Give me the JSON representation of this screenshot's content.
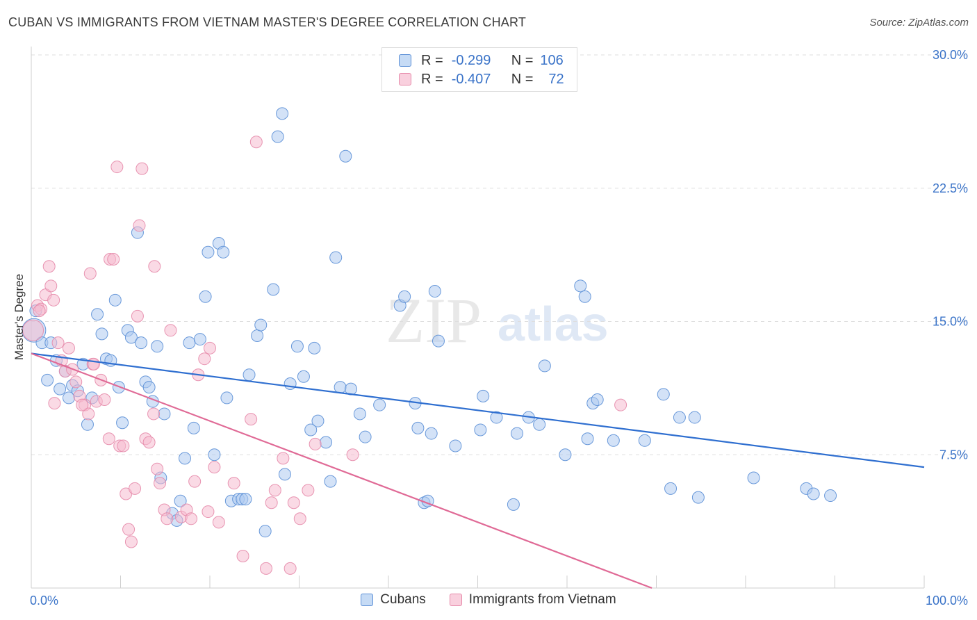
{
  "title": "CUBAN VS IMMIGRANTS FROM VIETNAM MASTER'S DEGREE CORRELATION CHART",
  "source": "Source: ZipAtlas.com",
  "watermark": {
    "zip": "ZIP",
    "atlas": "atlas"
  },
  "legend_top": {
    "rows": [
      {
        "r_label": "R =",
        "r_value": "-0.299",
        "n_label": "N =",
        "n_value": "106"
      },
      {
        "r_label": "R =",
        "r_value": "-0.407",
        "n_label": "N =",
        "n_value": "72"
      }
    ]
  },
  "legend_bottom": [
    "Cubans",
    "Immigrants from Vietnam"
  ],
  "colors": {
    "blue_fill": "#aecbf0",
    "blue_stroke": "#5b8fd6",
    "blue_line": "#2f6fd0",
    "pink_fill": "#f6bcd0",
    "pink_stroke": "#e68aaa",
    "pink_line": "#e06a96",
    "tick_label": "#3a73c8",
    "grid": "#dedede"
  },
  "chart_data": {
    "type": "scatter",
    "title": "CUBAN VS IMMIGRANTS FROM VIETNAM MASTER'S DEGREE CORRELATION CHART",
    "xlabel": "",
    "ylabel": "Master's Degree",
    "xlim": [
      0,
      100
    ],
    "ylim": [
      0,
      30
    ],
    "x_tick_labels": [
      "0.0%",
      "100.0%"
    ],
    "y_ticks": [
      7.5,
      15.0,
      22.5,
      30.0
    ],
    "y_tick_labels": [
      "7.5%",
      "15.0%",
      "22.5%",
      "30.0%"
    ],
    "grid": true,
    "legend_position": "top-center",
    "series": [
      {
        "name": "Cubans",
        "r": -0.299,
        "n": 106,
        "trend": {
          "x": [
            0,
            100
          ],
          "y": [
            13.2,
            6.8
          ]
        },
        "points": [
          [
            0.3,
            14.5
          ],
          [
            0.5,
            15.6
          ],
          [
            1.2,
            13.8
          ],
          [
            1.8,
            11.7
          ],
          [
            2.2,
            13.8
          ],
          [
            2.8,
            12.8
          ],
          [
            3.2,
            11.2
          ],
          [
            3.8,
            12.2
          ],
          [
            4.2,
            10.7
          ],
          [
            4.6,
            11.4
          ],
          [
            5.2,
            11.1
          ],
          [
            5.8,
            12.6
          ],
          [
            6.3,
            9.2
          ],
          [
            6.8,
            10.7
          ],
          [
            7.4,
            15.4
          ],
          [
            7.9,
            14.3
          ],
          [
            8.4,
            12.9
          ],
          [
            8.9,
            12.8
          ],
          [
            9.4,
            16.2
          ],
          [
            9.8,
            11.3
          ],
          [
            10.2,
            9.3
          ],
          [
            10.8,
            14.5
          ],
          [
            11.2,
            14.1
          ],
          [
            11.9,
            20.0
          ],
          [
            12.3,
            13.8
          ],
          [
            12.8,
            11.6
          ],
          [
            13.2,
            11.3
          ],
          [
            13.6,
            10.5
          ],
          [
            14.1,
            13.6
          ],
          [
            14.5,
            6.2
          ],
          [
            14.9,
            9.8
          ],
          [
            15.8,
            4.2
          ],
          [
            16.3,
            3.8
          ],
          [
            16.7,
            4.9
          ],
          [
            17.2,
            7.3
          ],
          [
            17.7,
            13.8
          ],
          [
            18.2,
            9.0
          ],
          [
            18.9,
            14.0
          ],
          [
            19.5,
            16.4
          ],
          [
            19.8,
            18.9
          ],
          [
            20.5,
            7.5
          ],
          [
            21.0,
            19.4
          ],
          [
            21.5,
            18.9
          ],
          [
            21.9,
            10.7
          ],
          [
            22.4,
            4.9
          ],
          [
            23.2,
            5.0
          ],
          [
            23.6,
            5.0
          ],
          [
            24.0,
            5.0
          ],
          [
            24.4,
            12.0
          ],
          [
            25.3,
            14.2
          ],
          [
            25.7,
            14.8
          ],
          [
            26.2,
            3.2
          ],
          [
            27.1,
            16.8
          ],
          [
            27.6,
            25.4
          ],
          [
            28.1,
            26.7
          ],
          [
            28.4,
            6.4
          ],
          [
            29.0,
            11.5
          ],
          [
            29.8,
            13.6
          ],
          [
            30.5,
            11.9
          ],
          [
            31.3,
            8.9
          ],
          [
            31.7,
            13.5
          ],
          [
            32.1,
            9.4
          ],
          [
            33.0,
            8.2
          ],
          [
            33.5,
            6.0
          ],
          [
            34.1,
            18.6
          ],
          [
            34.6,
            11.3
          ],
          [
            35.2,
            24.3
          ],
          [
            35.8,
            11.2
          ],
          [
            36.8,
            9.8
          ],
          [
            37.4,
            8.5
          ],
          [
            39.0,
            10.3
          ],
          [
            41.3,
            15.9
          ],
          [
            41.8,
            16.4
          ],
          [
            43.0,
            10.4
          ],
          [
            43.3,
            9.0
          ],
          [
            44.0,
            4.8
          ],
          [
            44.4,
            4.9
          ],
          [
            44.8,
            8.7
          ],
          [
            45.2,
            16.7
          ],
          [
            45.6,
            13.9
          ],
          [
            47.5,
            8.0
          ],
          [
            50.3,
            8.9
          ],
          [
            50.6,
            10.8
          ],
          [
            52.1,
            9.6
          ],
          [
            54.0,
            4.7
          ],
          [
            54.4,
            8.7
          ],
          [
            55.7,
            9.6
          ],
          [
            56.9,
            9.2
          ],
          [
            57.5,
            12.5
          ],
          [
            59.8,
            7.5
          ],
          [
            61.5,
            17.0
          ],
          [
            62.0,
            16.4
          ],
          [
            62.3,
            8.4
          ],
          [
            62.9,
            10.4
          ],
          [
            63.4,
            10.6
          ],
          [
            65.2,
            8.3
          ],
          [
            68.7,
            8.3
          ],
          [
            70.8,
            10.9
          ],
          [
            71.6,
            5.6
          ],
          [
            72.6,
            9.6
          ],
          [
            74.3,
            9.6
          ],
          [
            74.7,
            5.1
          ],
          [
            80.9,
            6.2
          ],
          [
            86.8,
            5.6
          ],
          [
            87.6,
            5.3
          ],
          [
            89.5,
            5.2
          ]
        ]
      },
      {
        "name": "Immigrants from Vietnam",
        "r": -0.407,
        "n": 72,
        "trend": {
          "x": [
            0,
            69.5
          ],
          "y": [
            13.2,
            0.0
          ]
        },
        "points": [
          [
            0.2,
            14.5
          ],
          [
            0.7,
            15.9
          ],
          [
            1.1,
            15.7
          ],
          [
            1.6,
            16.5
          ],
          [
            2.0,
            18.1
          ],
          [
            2.2,
            17.0
          ],
          [
            2.5,
            16.2
          ],
          [
            3.0,
            13.8
          ],
          [
            3.4,
            12.8
          ],
          [
            3.8,
            12.2
          ],
          [
            4.2,
            13.5
          ],
          [
            4.6,
            12.3
          ],
          [
            5.0,
            11.6
          ],
          [
            5.4,
            10.8
          ],
          [
            6.0,
            10.3
          ],
          [
            6.4,
            9.8
          ],
          [
            6.9,
            12.6
          ],
          [
            7.3,
            10.5
          ],
          [
            7.8,
            11.7
          ],
          [
            8.2,
            10.6
          ],
          [
            8.7,
            8.4
          ],
          [
            8.8,
            18.5
          ],
          [
            9.2,
            18.5
          ],
          [
            9.6,
            23.7
          ],
          [
            9.9,
            8.0
          ],
          [
            10.3,
            8.0
          ],
          [
            10.6,
            5.3
          ],
          [
            10.9,
            3.3
          ],
          [
            11.2,
            2.6
          ],
          [
            11.6,
            5.6
          ],
          [
            12.1,
            20.4
          ],
          [
            12.4,
            23.6
          ],
          [
            12.8,
            8.4
          ],
          [
            13.2,
            8.2
          ],
          [
            13.8,
            18.1
          ],
          [
            14.1,
            6.7
          ],
          [
            14.4,
            5.9
          ],
          [
            14.9,
            4.4
          ],
          [
            15.2,
            3.9
          ],
          [
            15.6,
            14.5
          ],
          [
            16.8,
            4.0
          ],
          [
            17.4,
            4.4
          ],
          [
            17.9,
            3.9
          ],
          [
            18.3,
            6.0
          ],
          [
            18.7,
            12.0
          ],
          [
            19.4,
            12.9
          ],
          [
            19.8,
            4.3
          ],
          [
            20.5,
            6.8
          ],
          [
            21.0,
            3.7
          ],
          [
            22.7,
            5.9
          ],
          [
            23.7,
            1.8
          ],
          [
            24.6,
            9.5
          ],
          [
            25.2,
            25.1
          ],
          [
            26.3,
            1.1
          ],
          [
            26.9,
            4.8
          ],
          [
            27.3,
            5.5
          ],
          [
            28.2,
            7.3
          ],
          [
            29.0,
            1.1
          ],
          [
            29.4,
            4.8
          ],
          [
            30.1,
            3.9
          ],
          [
            31.0,
            5.5
          ],
          [
            31.8,
            8.1
          ],
          [
            36.0,
            7.5
          ],
          [
            66.0,
            10.3
          ],
          [
            0.9,
            15.6
          ],
          [
            2.6,
            10.4
          ],
          [
            5.7,
            10.3
          ],
          [
            6.6,
            17.7
          ],
          [
            7.0,
            12.6
          ],
          [
            11.9,
            15.3
          ],
          [
            13.7,
            9.8
          ],
          [
            20.0,
            13.5
          ]
        ]
      }
    ]
  }
}
